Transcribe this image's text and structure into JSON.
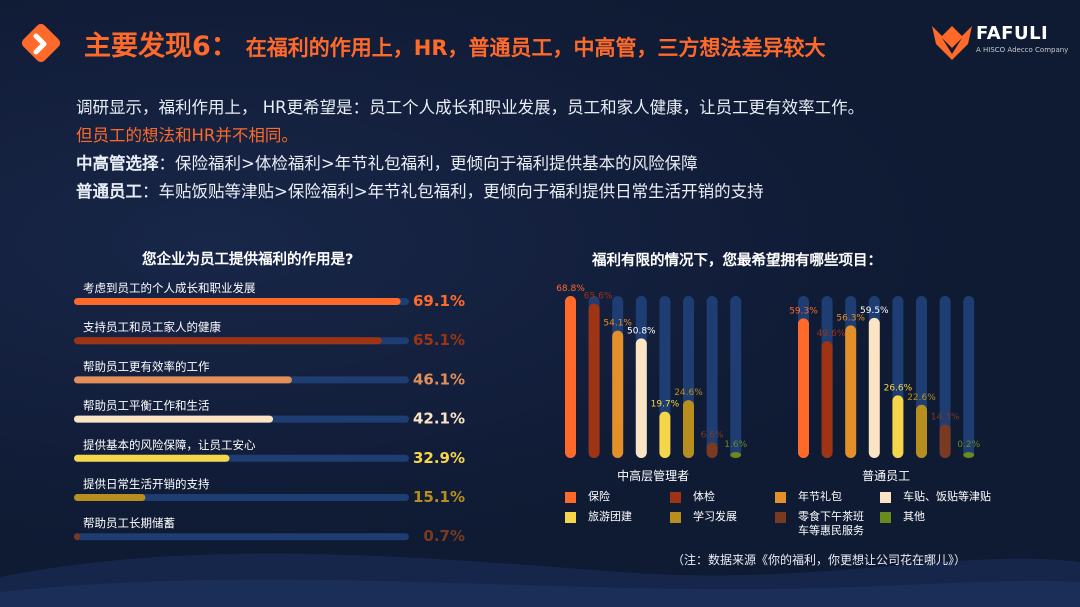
{
  "header": {
    "title_main": "主要发现6：",
    "title_sub": "在福利的作用上，HR，普通员工，中高管，三方想法差异较大",
    "brand_name": "FAFULI",
    "brand_tagline": "A HISCO Adecco Company"
  },
  "intro": {
    "line1": "调研显示，福利作用上， HR更希望是：员工个人成长和职业发展，员工和家人健康，让员工更有效率工作。",
    "line2": "但员工的想法和HR并不相同。",
    "line3_label": "中高管选择",
    "line3_text": "：保险福利>体检福利>年节礼包福利，更倾向于福利提供基本的风险保障",
    "line4_label": "普通员工",
    "line4_text": "：车贴饭贴等津贴>保险福利>年节礼包福利，更倾向于福利提供日常生活开销的支持"
  },
  "colors": {
    "accent": "#ff6a2b",
    "background": "#0f1a33",
    "track": "#1d3d73"
  },
  "chart_data": [
    {
      "type": "bar",
      "orientation": "horizontal",
      "title": "您企业为员工提供福利的作用是?",
      "categories": [
        "考虑到员工的个人成长和职业发展",
        "支持员工和员工家人的健康",
        "帮助员工更有效率的工作",
        "帮助员工平衡工作和生活",
        "提供基本的风险保障，让员工安心",
        "提供日常生活开销的支持",
        "帮助员工长期储蓄"
      ],
      "values": [
        69.1,
        65.1,
        46.1,
        42.1,
        32.9,
        15.1,
        0.7
      ],
      "labels": [
        "69.1%",
        "65.1%",
        "46.1%",
        "42.1%",
        "32.9%",
        "15.1%",
        "0.7%"
      ],
      "colors": [
        "#ff6a2b",
        "#9e3414",
        "#e38f5a",
        "#fbe4c4",
        "#f5d54a",
        "#b88f1e",
        "#7a3a22"
      ],
      "xlim": [
        0,
        100
      ]
    },
    {
      "type": "bar",
      "orientation": "vertical",
      "title": "福利有限的情况下，您最希望拥有哪些项目：",
      "groups": [
        "中高层管理者",
        "普通员工"
      ],
      "series": [
        {
          "name": "保险",
          "color": "#ff6a2b",
          "values": [
            68.8,
            59.3
          ],
          "labels": [
            "68.8%",
            "59.3%"
          ]
        },
        {
          "name": "体检",
          "color": "#9e3414",
          "values": [
            65.6,
            49.6
          ],
          "labels": [
            "65.6%",
            "49.6%"
          ]
        },
        {
          "name": "年节礼包",
          "color": "#e38f2a",
          "values": [
            54.1,
            56.3
          ],
          "labels": [
            "54.1%",
            "56.3%"
          ]
        },
        {
          "name": "车贴、饭贴等津贴",
          "color": "#fbe4c4",
          "values": [
            50.8,
            59.5
          ],
          "labels": [
            "50.8%",
            "59.5%"
          ]
        },
        {
          "name": "旅游团建",
          "color": "#f5d54a",
          "values": [
            19.7,
            26.6
          ],
          "labels": [
            "19.7%",
            "26.6%"
          ]
        },
        {
          "name": "学习发展",
          "color": "#b88f1e",
          "values": [
            24.6,
            22.6
          ],
          "labels": [
            "24.6%",
            "22.6%"
          ]
        },
        {
          "name": "零食下午茶班车等惠民服务",
          "color": "#7a3a22",
          "values": [
            6.6,
            14.3
          ],
          "labels": [
            "6.6%",
            "14.3%"
          ]
        },
        {
          "name": "其他",
          "color": "#6b8a1e",
          "values": [
            1.6,
            0.2
          ],
          "labels": [
            "1.6%",
            "0.2%"
          ]
        }
      ],
      "ylim": [
        0,
        75
      ]
    }
  ],
  "legend_items": [
    {
      "label": "保险",
      "color": "#ff6a2b"
    },
    {
      "label": "体检",
      "color": "#9e3414"
    },
    {
      "label": "年节礼包",
      "color": "#e38f2a"
    },
    {
      "label": "车贴、饭贴等津贴",
      "color": "#fbe4c4"
    },
    {
      "label": "旅游团建",
      "color": "#f5d54a"
    },
    {
      "label": "学习发展",
      "color": "#b88f1e"
    },
    {
      "label": "零食下午茶班车等惠民服务",
      "label_line1": "零食下午茶班",
      "label_line2": "车等惠民服务",
      "color": "#7a3a22"
    },
    {
      "label": "其他",
      "color": "#6b8a1e"
    }
  ],
  "footnote": "（注：数据来源《你的福利，你更想让公司花在哪儿》）"
}
